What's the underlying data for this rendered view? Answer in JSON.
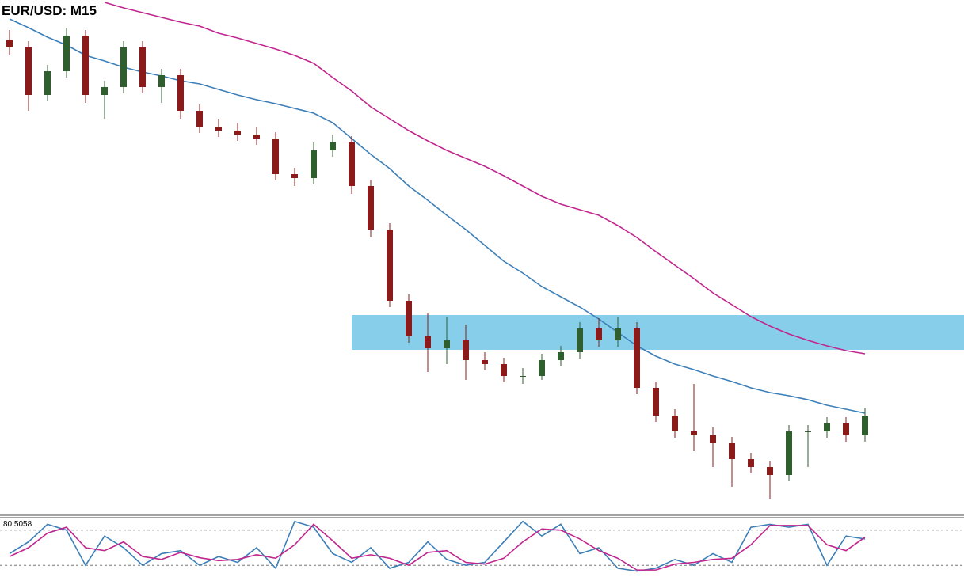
{
  "chart_data": [
    {
      "type": "candlestick",
      "title": "EUR/USD: M15",
      "ylim": [
        0,
        650
      ],
      "bull_color": "#2f5f2f",
      "bear_color": "#8b1a1a",
      "zone": {
        "from": 208,
        "to": 252,
        "start": 18,
        "color": "#87ceeb"
      },
      "ohlc": [
        [
          600,
          612,
          580,
          590
        ],
        [
          590,
          598,
          510,
          530
        ],
        [
          530,
          568,
          522,
          560
        ],
        [
          560,
          615,
          552,
          605
        ],
        [
          605,
          612,
          520,
          530
        ],
        [
          530,
          548,
          500,
          540
        ],
        [
          540,
          598,
          532,
          590
        ],
        [
          590,
          598,
          532,
          540
        ],
        [
          540,
          563,
          520,
          555
        ],
        [
          555,
          563,
          500,
          510
        ],
        [
          510,
          518,
          482,
          490
        ],
        [
          490,
          500,
          477,
          485
        ],
        [
          485,
          495,
          472,
          480
        ],
        [
          480,
          490,
          467,
          475
        ],
        [
          475,
          483,
          422,
          430
        ],
        [
          430,
          438,
          415,
          425
        ],
        [
          425,
          470,
          417,
          460
        ],
        [
          460,
          480,
          452,
          470
        ],
        [
          470,
          478,
          405,
          415
        ],
        [
          415,
          423,
          350,
          360
        ],
        [
          360,
          368,
          262,
          270
        ],
        [
          270,
          278,
          217,
          225
        ],
        [
          225,
          255,
          180,
          210
        ],
        [
          210,
          250,
          190,
          220
        ],
        [
          220,
          240,
          170,
          195
        ],
        [
          195,
          205,
          182,
          190
        ],
        [
          190,
          198,
          167,
          175
        ],
        [
          175,
          185,
          165,
          175
        ],
        [
          175,
          203,
          170,
          195
        ],
        [
          195,
          213,
          187,
          205
        ],
        [
          205,
          243,
          197,
          235
        ],
        [
          235,
          248,
          212,
          220
        ],
        [
          220,
          250,
          212,
          235
        ],
        [
          235,
          243,
          152,
          160
        ],
        [
          160,
          168,
          117,
          125
        ],
        [
          125,
          133,
          97,
          105
        ],
        [
          105,
          165,
          80,
          100
        ],
        [
          100,
          110,
          60,
          90
        ],
        [
          90,
          98,
          35,
          70
        ],
        [
          70,
          78,
          52,
          60
        ],
        [
          60,
          68,
          20,
          50
        ],
        [
          50,
          113,
          42,
          105
        ],
        [
          105,
          113,
          60,
          105
        ],
        [
          105,
          123,
          97,
          115
        ],
        [
          115,
          123,
          92,
          100
        ],
        [
          100,
          135,
          92,
          125
        ]
      ],
      "series": [
        {
          "color": "#3c7fb8",
          "values": [
            626,
            615,
            603,
            593,
            580,
            573,
            565,
            559,
            554,
            548,
            544,
            537,
            530,
            524,
            519,
            513,
            507,
            495,
            475,
            455,
            437,
            415,
            397,
            378,
            360,
            340,
            320,
            305,
            288,
            275,
            262,
            247,
            230,
            213,
            200,
            190,
            183,
            175,
            168,
            160,
            154,
            150,
            145,
            138,
            133,
            128
          ]
        },
        {
          "color": "#c0268f",
          "values": [
            null,
            null,
            null,
            null,
            null,
            647,
            640,
            634,
            628,
            622,
            617,
            608,
            602,
            595,
            588,
            580,
            570,
            552,
            535,
            515,
            500,
            485,
            472,
            460,
            450,
            440,
            428,
            415,
            402,
            392,
            385,
            378,
            365,
            350,
            332,
            315,
            298,
            280,
            265,
            250,
            238,
            228,
            220,
            213,
            207,
            203
          ]
        }
      ]
    },
    {
      "type": "line",
      "ylim": [
        0,
        100
      ],
      "max_label": 80.5058,
      "levels": [
        80,
        20
      ],
      "series": [
        {
          "color": "#3c7fb8",
          "values": [
            40,
            60,
            90,
            80,
            20,
            70,
            50,
            20,
            40,
            45,
            20,
            35,
            25,
            50,
            15,
            95,
            85,
            40,
            25,
            50,
            15,
            25,
            60,
            30,
            20,
            25,
            60,
            95,
            70,
            90,
            40,
            50,
            15,
            10,
            15,
            30,
            20,
            40,
            25,
            85,
            90,
            85,
            90,
            20,
            70,
            65
          ]
        },
        {
          "color": "#c0268f",
          "values": [
            35,
            50,
            75,
            85,
            50,
            45,
            60,
            35,
            30,
            42,
            33,
            28,
            30,
            38,
            32,
            55,
            90,
            62,
            32,
            38,
            32,
            20,
            42,
            45,
            25,
            22,
            32,
            60,
            82,
            80,
            65,
            45,
            32,
            12,
            12,
            22,
            25,
            30,
            32,
            55,
            88,
            88,
            88,
            55,
            45,
            68
          ]
        }
      ]
    }
  ]
}
